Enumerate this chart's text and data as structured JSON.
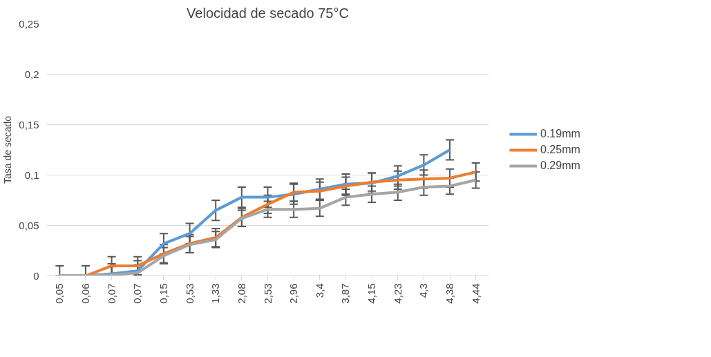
{
  "chart_data": {
    "type": "line",
    "title": "Velocidad de secado 75°C",
    "ylabel": "Tasa de secado",
    "categories": [
      "0,05",
      "0,06",
      "0,07",
      "0,07",
      "0,15",
      "0,53",
      "1,33",
      "2,08",
      "2,53",
      "2,96",
      "3,4",
      "3,87",
      "4,15",
      "4,23",
      "4,3",
      "4,38",
      "4,44"
    ],
    "series": [
      {
        "name": "0.19mm",
        "color": "#5b9bd5",
        "values": [
          0,
          0,
          0.002,
          0.005,
          0.032,
          0.042,
          0.065,
          0.078,
          0.078,
          0.081,
          0.086,
          0.091,
          0.092,
          0.099,
          0.11,
          0.125,
          null
        ],
        "errors": [
          [
            0,
            0.01
          ],
          [
            0,
            0.01
          ],
          0.01,
          0.01,
          0.01,
          0.01,
          0.01,
          0.01,
          0.01,
          0.01,
          0.01,
          0.01,
          0.01,
          0.01,
          0.01,
          0.01,
          null
        ]
      },
      {
        "name": "0.25mm",
        "color": "#ed7d31",
        "values": [
          0,
          0,
          0.01,
          0.01,
          0.022,
          0.032,
          0.038,
          0.058,
          0.071,
          0.083,
          0.084,
          0.089,
          0.093,
          0.095,
          0.096,
          0.097,
          0.103
        ],
        "errors": [
          null,
          null,
          0.009,
          0.009,
          0.009,
          0.009,
          0.009,
          0.009,
          0.009,
          0.009,
          0.009,
          0.009,
          0.009,
          0.009,
          0.009,
          0.009,
          0.009
        ]
      },
      {
        "name": "0.29mm",
        "color": "#a5a5a5",
        "values": [
          0,
          0,
          0.001,
          0.003,
          0.02,
          0.031,
          0.036,
          0.057,
          0.066,
          0.066,
          0.067,
          0.078,
          0.081,
          0.083,
          0.088,
          0.089,
          0.095
        ],
        "errors": [
          null,
          null,
          0.008,
          0.008,
          0.008,
          0.008,
          0.008,
          0.008,
          0.008,
          0.008,
          0.008,
          0.008,
          0.008,
          0.008,
          0.008,
          0.008,
          0.008
        ]
      }
    ],
    "ylim": [
      0,
      0.25
    ],
    "yticks": [
      {
        "value": 0,
        "label": "0"
      },
      {
        "value": 0.05,
        "label": "0,05"
      },
      {
        "value": 0.1,
        "label": "0,1"
      },
      {
        "value": 0.15,
        "label": "0,15"
      },
      {
        "value": 0.2,
        "label": "0,2"
      },
      {
        "value": 0.25,
        "label": "0,25"
      }
    ],
    "grid": "y",
    "legend": "right",
    "marker": "none",
    "line_style": "solid"
  }
}
